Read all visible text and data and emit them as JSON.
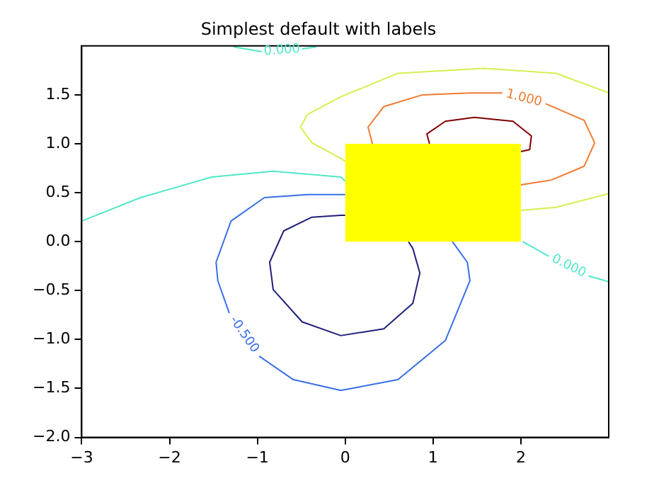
{
  "chart_data": {
    "type": "line",
    "title": "Simplest default with labels",
    "xlim": [
      -3,
      3
    ],
    "ylim": [
      -2,
      2
    ],
    "xticks": [
      {
        "value": -3,
        "label": "−3"
      },
      {
        "value": -2,
        "label": "−2"
      },
      {
        "value": -1,
        "label": "−1"
      },
      {
        "value": 0,
        "label": "0"
      },
      {
        "value": 1,
        "label": "1"
      },
      {
        "value": 2,
        "label": "2"
      }
    ],
    "yticks": [
      {
        "value": -2,
        "label": "−2.0"
      },
      {
        "value": -1.5,
        "label": "−1.5"
      },
      {
        "value": -1,
        "label": "−1.0"
      },
      {
        "value": -0.5,
        "label": "−0.5"
      },
      {
        "value": 0,
        "label": "0.0"
      },
      {
        "value": 0.5,
        "label": "0.5"
      },
      {
        "value": 1,
        "label": "1.0"
      },
      {
        "value": 1.5,
        "label": "1.5"
      }
    ],
    "grid": false,
    "legend": false,
    "series": [
      {
        "color": "#50e8c8",
        "x": [
          -3,
          -2.33,
          -1.52,
          -0.82,
          -0.05,
          0
        ],
        "values": [
          0.21,
          0.45,
          0.66,
          0.72,
          0.66,
          0.62
        ]
      },
      {
        "color": "#50e8c8",
        "x": [
          2.02,
          2.32,
          null,
          2.77,
          3.0
        ],
        "values": [
          0,
          -0.15,
          null,
          -0.35,
          -0.41
        ]
      },
      {
        "color": "#50e8c8",
        "x": [
          -1.27,
          -0.95,
          null,
          -0.49,
          -0.33
        ],
        "values": [
          1.99,
          1.94,
          null,
          1.97,
          1.99
        ]
      },
      {
        "color": "#3a6ee8",
        "x": [
          0,
          -0.05,
          -0.43,
          -0.92,
          -1.3,
          -1.47,
          -1.45,
          -1.32,
          null,
          -0.98,
          -0.59,
          -0.05,
          0.6,
          1.14,
          1.42,
          1.39,
          1.22
        ],
        "values": [
          0.48,
          0.48,
          0.48,
          0.45,
          0.21,
          -0.21,
          -0.4,
          -0.73,
          null,
          -1.17,
          -1.41,
          -1.52,
          -1.41,
          -1.01,
          -0.4,
          -0.21,
          0
        ]
      },
      {
        "color": "#20207a",
        "x": [
          0,
          -0.05,
          -0.38,
          -0.7,
          -0.86,
          -0.82,
          -0.49,
          -0.05,
          0.44,
          0.77,
          0.85,
          0.77,
          0.72
        ],
        "values": [
          0.27,
          0.27,
          0.25,
          0.11,
          -0.21,
          -0.49,
          -0.82,
          -0.96,
          -0.89,
          -0.63,
          -0.32,
          -0.07,
          0
        ]
      },
      {
        "color": "#d4f050",
        "x": [
          0,
          -0.05,
          -0.38,
          -0.51,
          -0.43,
          -0.05,
          0.6,
          1.58,
          2.4,
          3.0
        ],
        "values": [
          0.82,
          0.85,
          1.01,
          1.17,
          1.3,
          1.48,
          1.72,
          1.77,
          1.72,
          1.52
        ]
      },
      {
        "color": "#d4f050",
        "x": [
          2.0,
          2.4,
          3.0
        ],
        "values": [
          0.32,
          0.35,
          0.49
        ]
      },
      {
        "color": "#f07a30",
        "x": [
          0.31,
          0.26,
          0.44,
          0.88,
          1.42,
          1.79,
          null,
          2.28,
          2.72,
          2.84,
          2.72,
          2.35,
          2.0
        ],
        "values": [
          1.0,
          1.17,
          1.38,
          1.5,
          1.52,
          1.52,
          null,
          1.41,
          1.24,
          1.01,
          0.77,
          0.63,
          0.58
        ]
      },
      {
        "color": "#800000",
        "x": [
          0.96,
          0.93,
          1.14,
          1.47,
          1.91,
          2.12,
          2.1,
          2.0
        ],
        "values": [
          1.0,
          1.1,
          1.23,
          1.27,
          1.23,
          1.08,
          0.94,
          0.92
        ]
      },
      {
        "type": "area",
        "color": "#ffff00",
        "x": [
          0,
          2
        ],
        "values": [
          1,
          1
        ]
      }
    ],
    "annotations": [
      "0.000",
      "0.000",
      "-0.500",
      "1.000"
    ]
  }
}
